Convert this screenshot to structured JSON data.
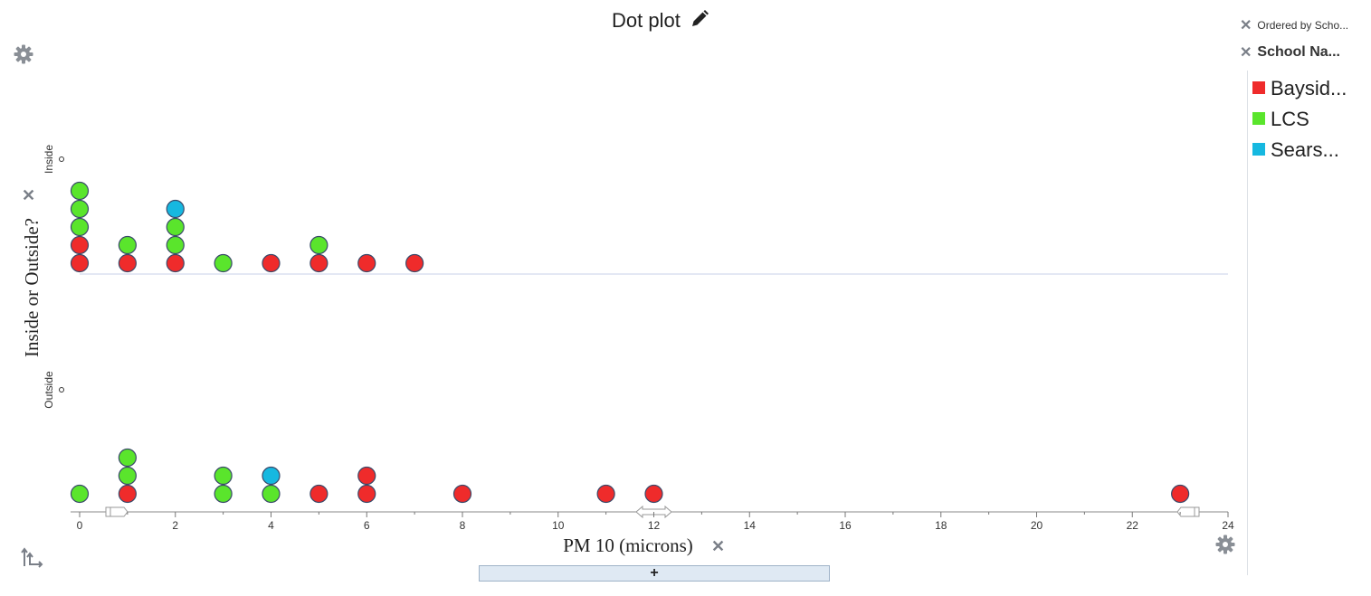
{
  "header": {
    "title": "Dot plot"
  },
  "legend": {
    "order_label": "Ordered by Scho...",
    "attribute_label": "School Na...",
    "items": [
      {
        "label": "Baysid...",
        "color": "#ef2b2b"
      },
      {
        "label": "LCS",
        "color": "#5ae52c"
      },
      {
        "label": "Sears...",
        "color": "#16b8e0"
      }
    ]
  },
  "controls": {
    "add_label": "+"
  },
  "chart_data": {
    "type": "scatter",
    "xlabel": "PM 10 (microns)",
    "ylabel": "Inside or Outside?",
    "xlim": [
      0,
      24
    ],
    "x_ticks": [
      0,
      2,
      4,
      6,
      8,
      10,
      12,
      14,
      16,
      18,
      20,
      22,
      24
    ],
    "categories": [
      "Inside",
      "Outside"
    ],
    "grid": false,
    "series": [
      {
        "name": "Baysid...",
        "color": "#ef2b2b",
        "points": [
          {
            "category": "Inside",
            "x": [
              0,
              0,
              1,
              2,
              4,
              5,
              6,
              7
            ]
          },
          {
            "category": "Outside",
            "x": [
              1,
              5,
              6,
              6,
              8,
              11,
              12,
              23
            ]
          }
        ]
      },
      {
        "name": "LCS",
        "color": "#5ae52c",
        "points": [
          {
            "category": "Inside",
            "x": [
              0,
              0,
              0,
              1,
              2,
              2,
              3,
              5
            ]
          },
          {
            "category": "Outside",
            "x": [
              0,
              1,
              1,
              3,
              3,
              4
            ]
          }
        ]
      },
      {
        "name": "Sears...",
        "color": "#16b8e0",
        "points": [
          {
            "category": "Inside",
            "x": [
              2
            ]
          },
          {
            "category": "Outside",
            "x": [
              4
            ]
          }
        ]
      }
    ]
  }
}
